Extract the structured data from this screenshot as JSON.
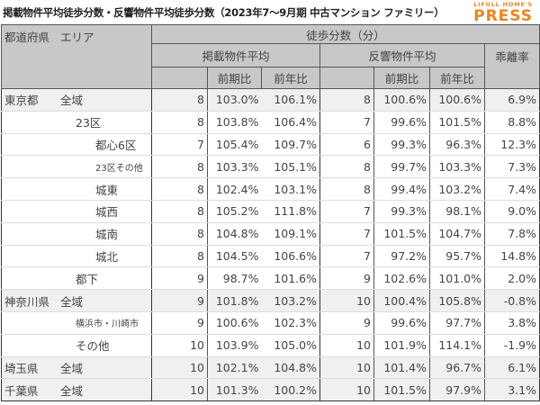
{
  "title": "掲載物件平均徒歩分数・反響物件平均徒歩分数（2023年7〜9月期 中古マンション ファミリー）",
  "logo": {
    "line1": "LIFULL HOME'S",
    "line2": "PRESS",
    "color": "#f0831e"
  },
  "header": {
    "pref_label": "都道府県",
    "area_label": "エリア",
    "group_label": "徒歩分数（分）",
    "listed_label": "掲載物件平均",
    "response_label": "反響物件平均",
    "gap_label": "乖離率",
    "qoq_label": "前期比",
    "yoy_label": "前年比"
  },
  "rows": [
    {
      "pref": "東京都",
      "area": "全域",
      "level": 0,
      "l_min": "8",
      "l_qoq": "103.0%",
      "l_yoy": "106.1%",
      "r_min": "8",
      "r_qoq": "100.6%",
      "r_yoy": "100.6%",
      "gap": "6.9%"
    },
    {
      "pref": "",
      "area": "23区",
      "level": 1,
      "l_min": "8",
      "l_qoq": "103.8%",
      "l_yoy": "106.4%",
      "r_min": "7",
      "r_qoq": "99.6%",
      "r_yoy": "101.5%",
      "gap": "8.8%"
    },
    {
      "pref": "",
      "area": "都心6区",
      "level": 2,
      "l_min": "7",
      "l_qoq": "105.4%",
      "l_yoy": "109.7%",
      "r_min": "6",
      "r_qoq": "99.3%",
      "r_yoy": "96.3%",
      "gap": "12.3%"
    },
    {
      "pref": "",
      "area": "23区その他",
      "level": 2,
      "small": true,
      "l_min": "8",
      "l_qoq": "103.3%",
      "l_yoy": "105.1%",
      "r_min": "8",
      "r_qoq": "99.7%",
      "r_yoy": "103.3%",
      "gap": "7.3%"
    },
    {
      "pref": "",
      "area": "城東",
      "level": 2,
      "l_min": "8",
      "l_qoq": "102.4%",
      "l_yoy": "103.1%",
      "r_min": "8",
      "r_qoq": "99.4%",
      "r_yoy": "103.2%",
      "gap": "7.4%"
    },
    {
      "pref": "",
      "area": "城西",
      "level": 2,
      "l_min": "8",
      "l_qoq": "105.2%",
      "l_yoy": "111.8%",
      "r_min": "7",
      "r_qoq": "99.3%",
      "r_yoy": "98.1%",
      "gap": "9.0%"
    },
    {
      "pref": "",
      "area": "城南",
      "level": 2,
      "l_min": "8",
      "l_qoq": "104.8%",
      "l_yoy": "109.1%",
      "r_min": "7",
      "r_qoq": "101.5%",
      "r_yoy": "104.7%",
      "gap": "7.8%"
    },
    {
      "pref": "",
      "area": "城北",
      "level": 2,
      "l_min": "8",
      "l_qoq": "104.5%",
      "l_yoy": "106.6%",
      "r_min": "7",
      "r_qoq": "97.2%",
      "r_yoy": "95.7%",
      "gap": "14.8%"
    },
    {
      "pref": "",
      "area": "都下",
      "level": 1,
      "l_min": "9",
      "l_qoq": "98.7%",
      "l_yoy": "101.6%",
      "r_min": "9",
      "r_qoq": "102.6%",
      "r_yoy": "101.0%",
      "gap": "2.0%"
    },
    {
      "pref": "神奈川県",
      "area": "全域",
      "level": 0,
      "l_min": "9",
      "l_qoq": "101.8%",
      "l_yoy": "103.2%",
      "r_min": "10",
      "r_qoq": "100.4%",
      "r_yoy": "105.8%",
      "gap": "-0.8%"
    },
    {
      "pref": "",
      "area": "横浜市・川崎市",
      "level": 1,
      "small": true,
      "l_min": "9",
      "l_qoq": "100.6%",
      "l_yoy": "102.3%",
      "r_min": "9",
      "r_qoq": "99.6%",
      "r_yoy": "97.7%",
      "gap": "3.8%"
    },
    {
      "pref": "",
      "area": "その他",
      "level": 1,
      "l_min": "10",
      "l_qoq": "103.9%",
      "l_yoy": "105.0%",
      "r_min": "10",
      "r_qoq": "101.9%",
      "r_yoy": "114.1%",
      "gap": "-1.9%"
    },
    {
      "pref": "埼玉県",
      "area": "全域",
      "level": 0,
      "l_min": "10",
      "l_qoq": "102.1%",
      "l_yoy": "104.8%",
      "r_min": "10",
      "r_qoq": "101.4%",
      "r_yoy": "96.7%",
      "gap": "6.1%"
    },
    {
      "pref": "千葉県",
      "area": "全域",
      "level": 0,
      "l_min": "10",
      "l_qoq": "101.3%",
      "l_yoy": "100.2%",
      "r_min": "10",
      "r_qoq": "101.5%",
      "r_yoy": "97.9%",
      "gap": "3.1%"
    }
  ]
}
